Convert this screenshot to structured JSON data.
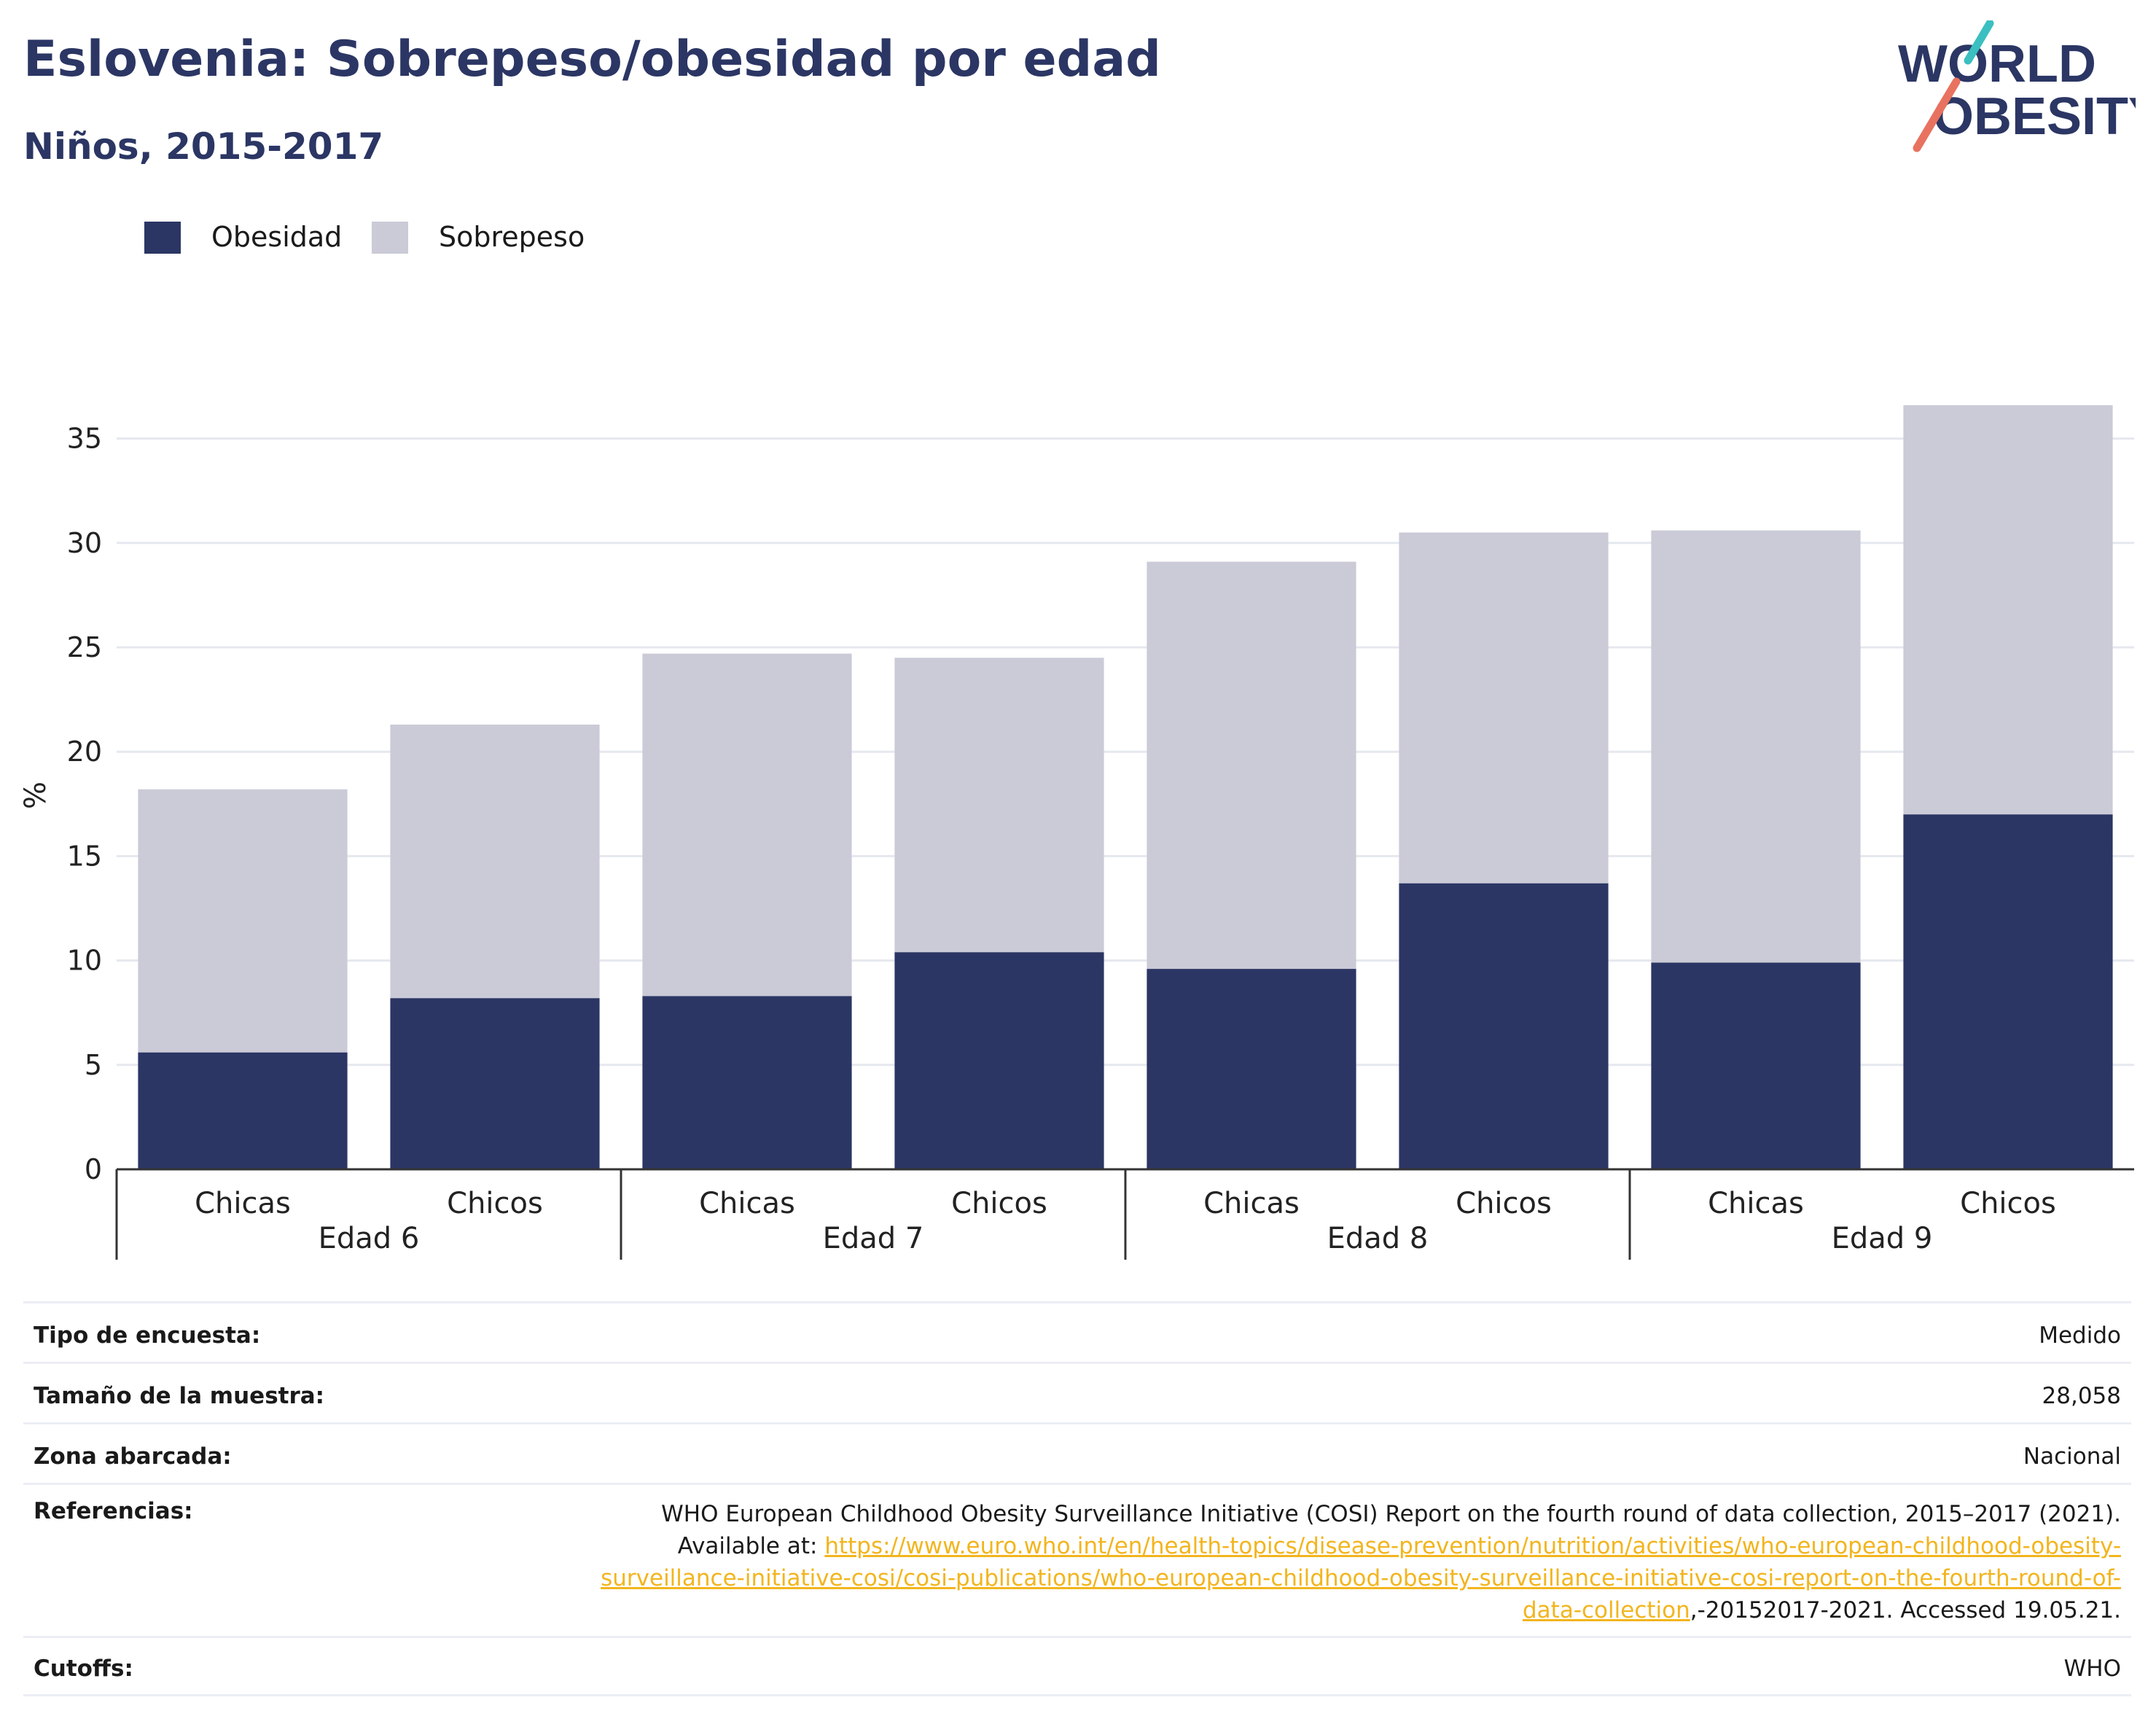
{
  "header": {
    "title": "Eslovenia: Sobrepeso/obesidad por edad",
    "subtitle": "Niños, 2015-2017"
  },
  "logo": {
    "line1": "WORLD",
    "line2": "OBESITY"
  },
  "colors": {
    "obesidad": "#2b3664",
    "sobrepeso": "#cacbd7",
    "title": "#2b3664",
    "logo_teal": "#3bbfc0",
    "logo_coral": "#e8725f",
    "link": "#f2b51e",
    "grid": "#e6e8ef",
    "axis": "#333333"
  },
  "legend": [
    {
      "label": "Obesidad",
      "color": "#2b3664"
    },
    {
      "label": "Sobrepeso",
      "color": "#cacbd7"
    }
  ],
  "chart_data": {
    "type": "bar",
    "stacked": true,
    "categories": [
      "Chicas",
      "Chicos",
      "Chicas",
      "Chicos",
      "Chicas",
      "Chicos",
      "Chicas",
      "Chicos"
    ],
    "groups": [
      {
        "label": "Edad 6",
        "span": 2
      },
      {
        "label": "Edad 7",
        "span": 2
      },
      {
        "label": "Edad 8",
        "span": 2
      },
      {
        "label": "Edad 9",
        "span": 2
      }
    ],
    "series": [
      {
        "name": "Obesidad",
        "color": "#2b3664",
        "values": [
          5.6,
          8.2,
          8.3,
          10.4,
          9.6,
          13.7,
          9.9,
          17.0
        ]
      },
      {
        "name": "Sobrepeso",
        "color": "#cacbd7",
        "values": [
          12.6,
          13.1,
          16.4,
          14.1,
          19.5,
          16.8,
          20.7,
          19.6
        ]
      }
    ],
    "ylabel": "%",
    "yticks": [
      0,
      5,
      10,
      15,
      20,
      25,
      30,
      35
    ],
    "ylim": [
      0,
      37.5
    ],
    "grid": true,
    "legend_position": "top-left"
  },
  "meta": {
    "rows": [
      {
        "label": "Tipo de encuesta:",
        "value": "Medido"
      },
      {
        "label": "Tamaño de la muestra:",
        "value": "28,058"
      },
      {
        "label": "Zona abarcada:",
        "value": "Nacional"
      }
    ],
    "references": {
      "label": "Referencias:",
      "text1": "WHO European Childhood Obesity Surveillance Initiative (COSI) Report on the fourth round of data collection, 2015–2017 (2021).",
      "text2": "Available at:",
      "link": "https://www.euro.who.int/en/health-topics/disease-prevention/nutrition/activities/who-european-childhood-obesity-surveillance-initiative-cosi/cosi-publications/who-european-childhood-obesity-surveillance-initiative-cosi-report-on-the-fourth-round-of-data-collection",
      "text3": ",-20152017-2021. Accessed 19.05.21."
    },
    "cutoffs": {
      "label": "Cutoffs:",
      "value": "WHO"
    }
  }
}
